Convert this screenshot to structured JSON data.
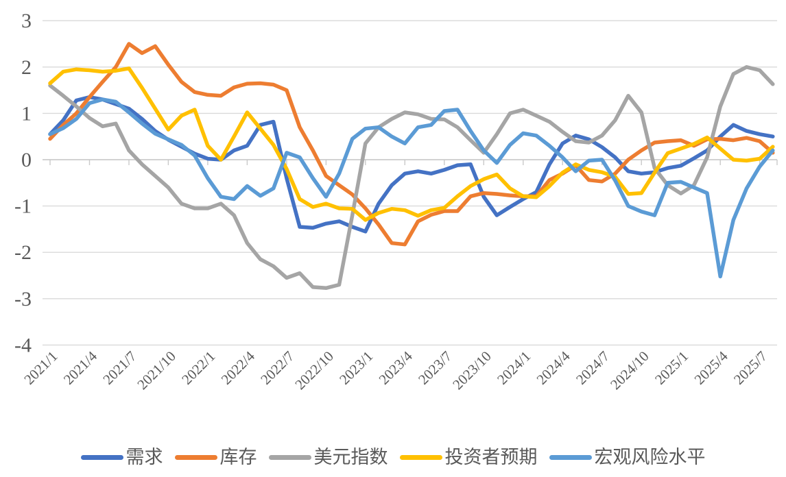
{
  "chart_data": {
    "type": "line",
    "title": "",
    "xlabel": "",
    "ylabel": "",
    "ylim": [
      -4,
      3
    ],
    "y_ticks": [
      3,
      2,
      1,
      0,
      -1,
      -2,
      -3,
      -4
    ],
    "y_tick_labels": [
      "3",
      "2",
      "1",
      "0",
      "-1",
      "-2",
      "-3",
      "-4"
    ],
    "grid": true,
    "legend_position": "bottom",
    "gridline_color": "#D9D9D9",
    "axis_line_color": "#C9C9C9",
    "label_color": "#595959",
    "x_tick_labels": [
      "2021/1",
      "2021/4",
      "2021/7",
      "2021/10",
      "2022/1",
      "2022/4",
      "2022/7",
      "2022/10",
      "2023/1",
      "2023/4",
      "2023/7",
      "2023/10",
      "2024/1",
      "2024/4",
      "2024/7",
      "2024/10",
      "2025/1",
      "2025/4",
      "2025/7"
    ],
    "months": [
      "2021/1",
      "2021/2",
      "2021/3",
      "2021/4",
      "2021/5",
      "2021/6",
      "2021/7",
      "2021/8",
      "2021/9",
      "2021/10",
      "2021/11",
      "2021/12",
      "2022/1",
      "2022/2",
      "2022/3",
      "2022/4",
      "2022/5",
      "2022/6",
      "2022/7",
      "2022/8",
      "2022/9",
      "2022/10",
      "2022/11",
      "2022/12",
      "2023/1",
      "2023/2",
      "2023/3",
      "2023/4",
      "2023/5",
      "2023/6",
      "2023/7",
      "2023/8",
      "2023/9",
      "2023/10",
      "2023/11",
      "2023/12",
      "2024/1",
      "2024/2",
      "2024/3",
      "2024/4",
      "2024/5",
      "2024/6",
      "2024/7",
      "2024/8",
      "2024/9",
      "2024/10",
      "2024/11",
      "2024/12",
      "2025/1",
      "2025/2",
      "2025/3",
      "2025/4",
      "2025/5",
      "2025/6",
      "2025/7",
      "2025/8"
    ],
    "series": [
      {
        "id": "demand",
        "name": "需求",
        "color": "#4472C4",
        "values": [
          0.55,
          0.85,
          1.28,
          1.35,
          1.3,
          1.2,
          1.1,
          0.88,
          0.62,
          0.43,
          0.28,
          0.13,
          0.02,
          0.0,
          0.2,
          0.3,
          0.75,
          0.82,
          -0.4,
          -1.45,
          -1.47,
          -1.38,
          -1.33,
          -1.45,
          -1.55,
          -0.95,
          -0.55,
          -0.3,
          -0.25,
          -0.3,
          -0.22,
          -0.12,
          -0.1,
          -0.8,
          -1.2,
          -1.02,
          -0.85,
          -0.7,
          -0.1,
          0.35,
          0.52,
          0.44,
          0.27,
          0.05,
          -0.25,
          -0.3,
          -0.27,
          -0.18,
          -0.13,
          0.03,
          0.2,
          0.5,
          0.75,
          0.62,
          0.55,
          0.5
        ]
      },
      {
        "id": "inventory",
        "name": "库存",
        "color": "#ED7D31",
        "values": [
          0.45,
          0.75,
          1.0,
          1.35,
          1.68,
          2.0,
          2.5,
          2.3,
          2.45,
          2.05,
          1.68,
          1.46,
          1.4,
          1.38,
          1.56,
          1.64,
          1.65,
          1.62,
          1.5,
          0.7,
          0.2,
          -0.35,
          -0.55,
          -0.75,
          -1.05,
          -1.4,
          -1.8,
          -1.83,
          -1.33,
          -1.19,
          -1.11,
          -1.11,
          -0.79,
          -0.72,
          -0.74,
          -0.77,
          -0.79,
          -0.79,
          -0.44,
          -0.3,
          -0.12,
          -0.44,
          -0.47,
          -0.3,
          0.0,
          0.2,
          0.37,
          0.4,
          0.42,
          0.3,
          0.44,
          0.45,
          0.42,
          0.47,
          0.4,
          0.15
        ]
      },
      {
        "id": "dollar-index",
        "name": "美元指数",
        "color": "#A5A5A5",
        "values": [
          1.6,
          1.38,
          1.15,
          0.9,
          0.72,
          0.78,
          0.2,
          -0.1,
          -0.35,
          -0.6,
          -0.95,
          -1.05,
          -1.05,
          -0.95,
          -1.2,
          -1.8,
          -2.15,
          -2.3,
          -2.55,
          -2.45,
          -2.75,
          -2.77,
          -2.7,
          -1.2,
          0.35,
          0.7,
          0.88,
          1.02,
          0.98,
          0.88,
          0.87,
          0.7,
          0.42,
          0.15,
          0.55,
          1.0,
          1.08,
          0.95,
          0.82,
          0.6,
          0.4,
          0.37,
          0.52,
          0.85,
          1.38,
          1.02,
          -0.18,
          -0.55,
          -0.73,
          -0.55,
          0.05,
          1.15,
          1.85,
          2.0,
          1.93,
          1.63
        ]
      },
      {
        "id": "investor-expectation",
        "name": "投资者预期",
        "color": "#FFC000",
        "values": [
          1.65,
          1.9,
          1.95,
          1.93,
          1.9,
          1.92,
          1.97,
          1.55,
          1.1,
          0.65,
          0.95,
          1.08,
          0.3,
          0.0,
          0.5,
          1.02,
          0.67,
          0.32,
          -0.2,
          -0.85,
          -1.02,
          -0.95,
          -1.05,
          -1.06,
          -1.3,
          -1.15,
          -1.06,
          -1.09,
          -1.21,
          -1.09,
          -1.04,
          -0.79,
          -0.57,
          -0.42,
          -0.32,
          -0.62,
          -0.79,
          -0.81,
          -0.57,
          -0.28,
          -0.1,
          -0.22,
          -0.27,
          -0.37,
          -0.74,
          -0.72,
          -0.28,
          0.14,
          0.24,
          0.34,
          0.48,
          0.24,
          0.0,
          -0.02,
          0.02,
          0.28
        ]
      },
      {
        "id": "macro-risk",
        "name": "宏观风险水平",
        "color": "#5B9BD5",
        "values": [
          0.55,
          0.68,
          0.88,
          1.22,
          1.3,
          1.25,
          1.02,
          0.78,
          0.56,
          0.44,
          0.32,
          0.09,
          -0.4,
          -0.8,
          -0.85,
          -0.57,
          -0.78,
          -0.62,
          0.15,
          0.05,
          -0.4,
          -0.8,
          -0.3,
          0.45,
          0.67,
          0.7,
          0.5,
          0.35,
          0.7,
          0.75,
          1.05,
          1.08,
          0.62,
          0.2,
          -0.07,
          0.32,
          0.57,
          0.52,
          0.3,
          0.05,
          -0.25,
          -0.02,
          0.0,
          -0.45,
          -1.0,
          -1.12,
          -1.2,
          -0.5,
          -0.48,
          -0.6,
          -0.72,
          -2.52,
          -1.3,
          -0.62,
          -0.15,
          0.2
        ]
      }
    ]
  }
}
